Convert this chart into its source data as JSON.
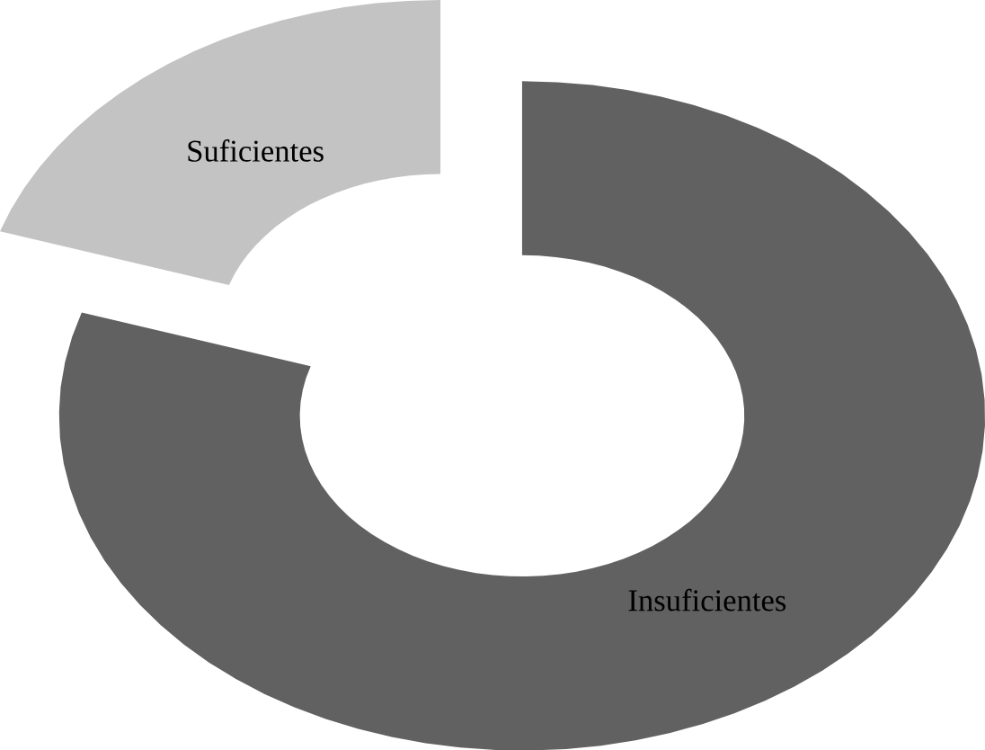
{
  "chart_data": {
    "type": "donut",
    "categories": [
      "Insuficientes",
      "Suficientes"
    ],
    "values": [
      80,
      20
    ],
    "colors": [
      "#616161",
      "#c3c3c3"
    ]
  }
}
